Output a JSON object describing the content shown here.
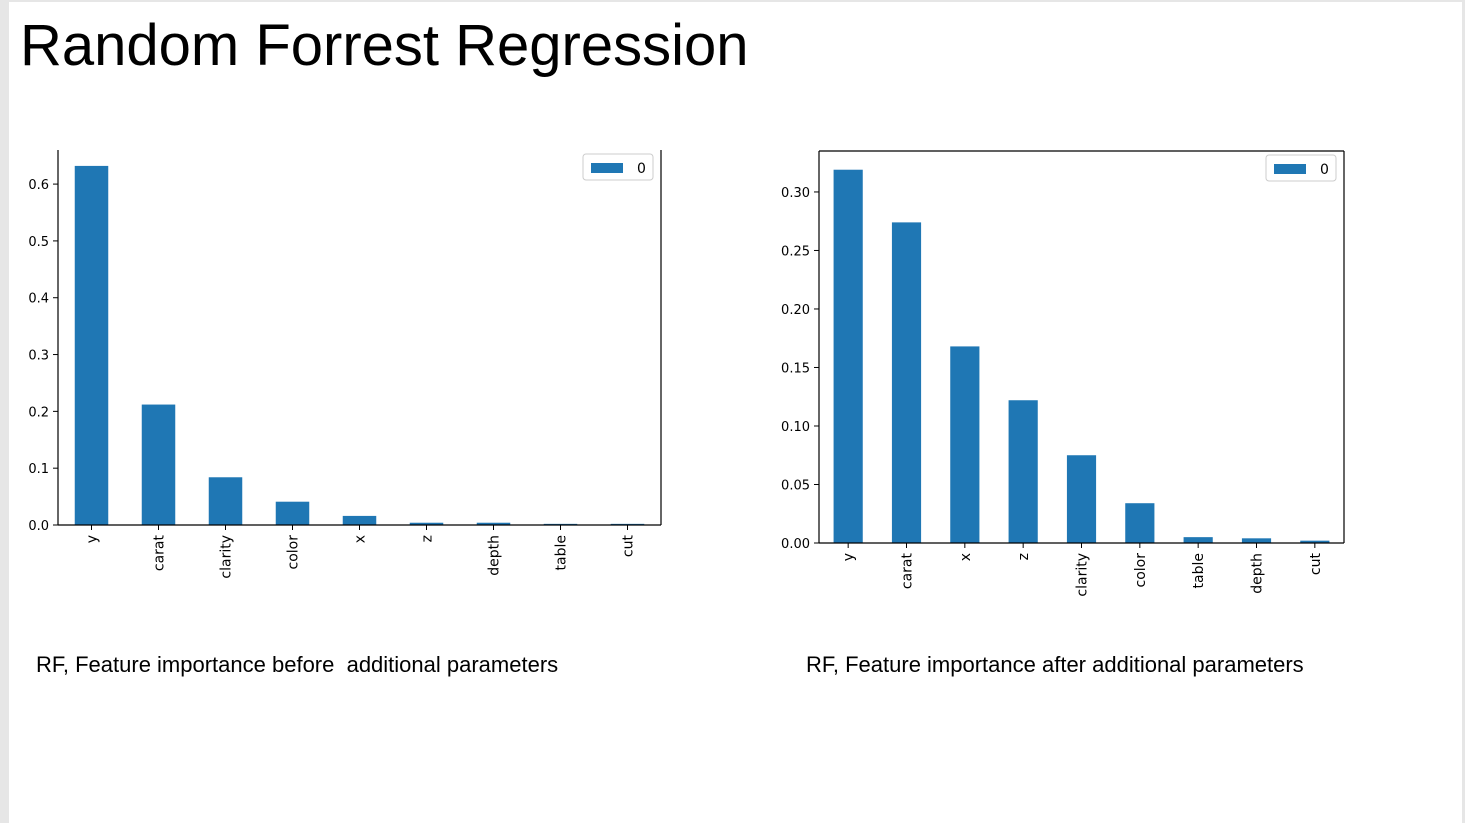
{
  "slide": {
    "title": "Random Forrest Regression",
    "caption_left": "RF, Feature importance before  additional parameters",
    "caption_right": "RF, Feature importance after additional parameters"
  },
  "colors": {
    "bar": "#1f77b4",
    "axis": "#000000",
    "background": "#ffffff"
  },
  "chart_data": [
    {
      "type": "bar",
      "categories": [
        "y",
        "carat",
        "clarity",
        "color",
        "x",
        "z",
        "depth",
        "table",
        "cut"
      ],
      "series": [
        {
          "name": "0",
          "values": [
            0.632,
            0.212,
            0.084,
            0.041,
            0.016,
            0.004,
            0.004,
            0.002,
            0.002
          ]
        }
      ],
      "ylim": [
        0,
        0.66
      ],
      "yticks": [
        0.0,
        0.1,
        0.2,
        0.3,
        0.4,
        0.5,
        0.6
      ],
      "ytick_labels": [
        "0.0",
        "0.1",
        "0.2",
        "0.3",
        "0.4",
        "0.5",
        "0.6"
      ],
      "legend_position": "top-right",
      "grid": false
    },
    {
      "type": "bar",
      "categories": [
        "y",
        "carat",
        "x",
        "z",
        "clarity",
        "color",
        "table",
        "depth",
        "cut"
      ],
      "series": [
        {
          "name": "0",
          "values": [
            0.319,
            0.274,
            0.168,
            0.122,
            0.075,
            0.034,
            0.005,
            0.004,
            0.002
          ]
        }
      ],
      "ylim": [
        0,
        0.335
      ],
      "yticks": [
        0.0,
        0.05,
        0.1,
        0.15,
        0.2,
        0.25,
        0.3
      ],
      "ytick_labels": [
        "0.00",
        "0.05",
        "0.10",
        "0.15",
        "0.20",
        "0.25",
        "0.30"
      ],
      "legend_position": "top-right",
      "grid": false
    }
  ]
}
